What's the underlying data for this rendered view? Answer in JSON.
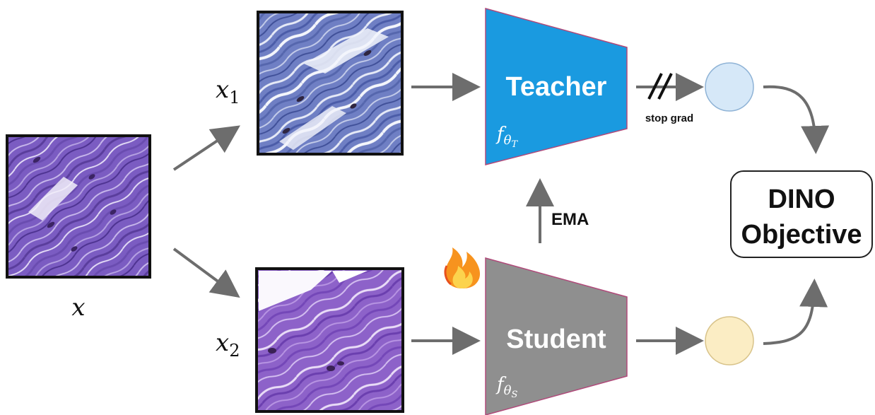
{
  "images": {
    "input_label": "x",
    "view1_label": "x",
    "view1_subscript": "1",
    "view2_label": "x",
    "view2_subscript": "2"
  },
  "teacher": {
    "title": "Teacher",
    "param_symbol": "f",
    "param_subscript": "θ",
    "param_subsub": "T",
    "color": "#1a9ae0"
  },
  "student": {
    "title": "Student",
    "param_symbol": "f",
    "param_subscript": "θ",
    "param_subsub": "S",
    "color": "#8f8f8f"
  },
  "stop_grad_label": "stop grad",
  "ema_label": "EMA",
  "objective": {
    "line1": "DINO",
    "line2": "Objective"
  },
  "fire_icon": "fire-icon",
  "colors": {
    "teacher_output": "#d6e8f8",
    "student_output": "#fbedc4",
    "arrow": "#6d6d6d",
    "tissue_purple": "#6a4cb0",
    "tissue_blue": "#5a6fb5"
  }
}
